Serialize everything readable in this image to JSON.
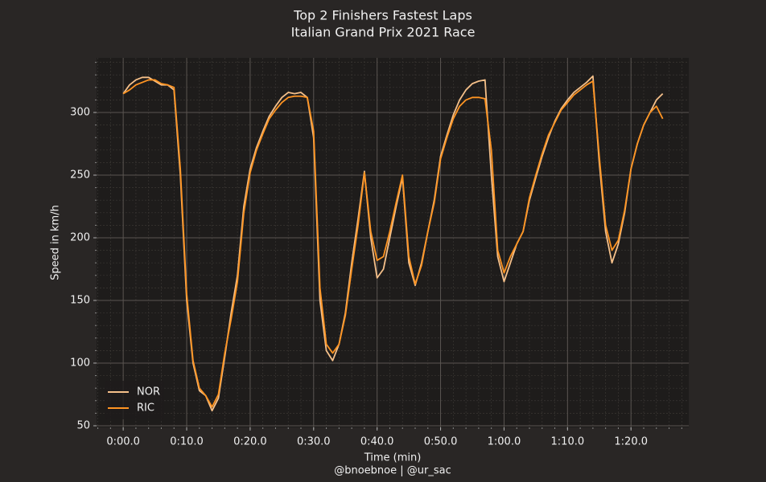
{
  "chart_data": {
    "type": "line",
    "title": "Top 2 Finishers Fastest Laps",
    "subtitle": "Italian Grand Prix 2021 Race",
    "xlabel": "Time (min)",
    "ylabel": "Speed in km/h",
    "caption": "@bnoebnoe | @ur_sac",
    "x": [
      0,
      1,
      2,
      3,
      4,
      5,
      6,
      7,
      8,
      9,
      10,
      11,
      12,
      13,
      14,
      15,
      16,
      17,
      18,
      19,
      20,
      21,
      22,
      23,
      24,
      25,
      26,
      27,
      28,
      29,
      30,
      31,
      32,
      33,
      34,
      35,
      36,
      37,
      38,
      39,
      40,
      41,
      42,
      43,
      44,
      45,
      46,
      47,
      48,
      49,
      50,
      51,
      52,
      53,
      54,
      55,
      56,
      57,
      58,
      59,
      60,
      61,
      62,
      63,
      64,
      65,
      66,
      67,
      68,
      69,
      70,
      71,
      72,
      73,
      74,
      75,
      76,
      77,
      78,
      79,
      80,
      81,
      82,
      83,
      84,
      85
    ],
    "series": [
      {
        "name": "NOR",
        "color": "#f5c08a",
        "values": [
          315,
          322,
          326,
          328,
          328,
          325,
          322,
          322,
          318,
          250,
          150,
          100,
          78,
          74,
          62,
          72,
          105,
          140,
          170,
          225,
          255,
          272,
          285,
          297,
          305,
          312,
          316,
          315,
          316,
          312,
          280,
          150,
          110,
          102,
          115,
          140,
          180,
          215,
          253,
          200,
          168,
          175,
          200,
          225,
          248,
          180,
          162,
          180,
          205,
          230,
          265,
          282,
          298,
          310,
          318,
          323,
          325,
          326,
          250,
          185,
          165,
          180,
          195,
          205,
          230,
          248,
          265,
          280,
          293,
          303,
          310,
          316,
          320,
          324,
          329,
          260,
          205,
          180,
          195,
          220,
          255,
          275,
          290,
          300,
          310,
          315
        ]
      },
      {
        "name": "RIC",
        "color": "#ff9422",
        "values": [
          315,
          318,
          322,
          324,
          326,
          326,
          323,
          322,
          320,
          255,
          155,
          102,
          80,
          74,
          65,
          75,
          108,
          135,
          165,
          220,
          252,
          270,
          283,
          295,
          302,
          308,
          312,
          313,
          313,
          312,
          285,
          160,
          115,
          108,
          115,
          138,
          175,
          210,
          252,
          205,
          182,
          185,
          205,
          228,
          250,
          185,
          163,
          178,
          205,
          228,
          263,
          280,
          295,
          305,
          310,
          312,
          312,
          311,
          270,
          190,
          172,
          185,
          195,
          205,
          232,
          250,
          267,
          282,
          292,
          302,
          308,
          314,
          318,
          322,
          325,
          265,
          210,
          190,
          198,
          222,
          255,
          275,
          290,
          300,
          305,
          295
        ]
      }
    ],
    "xlim": [
      -4.2,
      89.1
    ],
    "ylim": [
      48.7,
      343.6
    ],
    "xticks": [
      {
        "value": 0,
        "label": "0:00.0"
      },
      {
        "value": 10,
        "label": "0:10.0"
      },
      {
        "value": 20,
        "label": "0:20.0"
      },
      {
        "value": 30,
        "label": "0:30.0"
      },
      {
        "value": 40,
        "label": "0:40.0"
      },
      {
        "value": 50,
        "label": "0:50.0"
      },
      {
        "value": 60,
        "label": "1:00.0"
      },
      {
        "value": 70,
        "label": "1:10.0"
      },
      {
        "value": 80,
        "label": "1:20.0"
      }
    ],
    "yticks": [
      50,
      100,
      150,
      200,
      250,
      300
    ],
    "grid": true,
    "minor_grid": true,
    "legend": "lower left"
  }
}
